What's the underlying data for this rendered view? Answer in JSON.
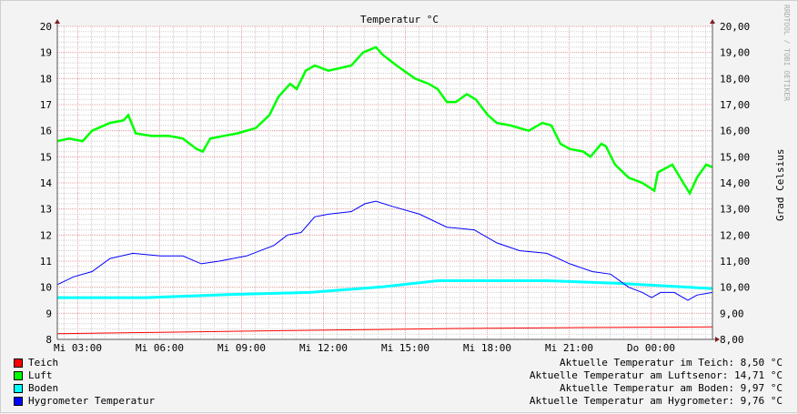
{
  "chart_data": {
    "type": "line",
    "title": "Temperatur °C",
    "ylabel": "Grad Celsius",
    "watermark": "RRDTOOL / TOBI OETIKER",
    "xunit": "hours (clock time, Mi 00:00 = 0)",
    "xlim": [
      2.25,
      26.25
    ],
    "ylim": [
      8,
      20
    ],
    "grid": true,
    "x_ticks": [
      {
        "x": 3,
        "label": "Mi 03:00"
      },
      {
        "x": 6,
        "label": "Mi 06:00"
      },
      {
        "x": 9,
        "label": "Mi 09:00"
      },
      {
        "x": 12,
        "label": "Mi 12:00"
      },
      {
        "x": 15,
        "label": "Mi 15:00"
      },
      {
        "x": 18,
        "label": "Mi 18:00"
      },
      {
        "x": 21,
        "label": "Mi 21:00"
      },
      {
        "x": 24,
        "label": "Do 00:00"
      }
    ],
    "y_ticks_left": [
      "8",
      "9",
      "10",
      "11",
      "12",
      "13",
      "14",
      "15",
      "16",
      "17",
      "18",
      "19",
      "20"
    ],
    "y_ticks_right": [
      "8,00",
      "9,00",
      "10,00",
      "11,00",
      "12,00",
      "13,00",
      "14,00",
      "15,00",
      "16,00",
      "17,00",
      "18,00",
      "19,00",
      "20,00"
    ],
    "series": [
      {
        "name": "Teich",
        "color": "#ff0000",
        "width": 1,
        "points": [
          [
            2.25,
            8.22
          ],
          [
            6,
            8.27
          ],
          [
            10.2,
            8.33
          ],
          [
            14,
            8.38
          ],
          [
            16.9,
            8.42
          ],
          [
            21,
            8.45
          ],
          [
            26.25,
            8.48
          ]
        ]
      },
      {
        "name": "Luft",
        "color": "#00ff00",
        "width": 2.5,
        "points": [
          [
            2.25,
            15.6
          ],
          [
            2.68,
            15.7
          ],
          [
            3.18,
            15.6
          ],
          [
            3.52,
            16.0
          ],
          [
            4.18,
            16.3
          ],
          [
            4.68,
            16.4
          ],
          [
            4.85,
            16.6
          ],
          [
            5.12,
            15.9
          ],
          [
            5.68,
            15.8
          ],
          [
            6.35,
            15.8
          ],
          [
            6.85,
            15.7
          ],
          [
            7.35,
            15.3
          ],
          [
            7.58,
            15.2
          ],
          [
            7.85,
            15.7
          ],
          [
            8.85,
            15.9
          ],
          [
            9.52,
            16.1
          ],
          [
            10.02,
            16.6
          ],
          [
            10.35,
            17.3
          ],
          [
            10.78,
            17.8
          ],
          [
            11.02,
            17.6
          ],
          [
            11.35,
            18.3
          ],
          [
            11.68,
            18.5
          ],
          [
            12.18,
            18.3
          ],
          [
            13.02,
            18.5
          ],
          [
            13.45,
            19.0
          ],
          [
            13.92,
            19.2
          ],
          [
            14.18,
            18.9
          ],
          [
            14.68,
            18.5
          ],
          [
            15.35,
            18.0
          ],
          [
            15.85,
            17.8
          ],
          [
            16.18,
            17.6
          ],
          [
            16.52,
            17.1
          ],
          [
            16.85,
            17.1
          ],
          [
            17.25,
            17.4
          ],
          [
            17.58,
            17.2
          ],
          [
            18.02,
            16.6
          ],
          [
            18.35,
            16.3
          ],
          [
            18.85,
            16.2
          ],
          [
            19.52,
            16.0
          ],
          [
            20.02,
            16.3
          ],
          [
            20.35,
            16.2
          ],
          [
            20.68,
            15.5
          ],
          [
            21.02,
            15.3
          ],
          [
            21.52,
            15.2
          ],
          [
            21.78,
            15.0
          ],
          [
            22.18,
            15.5
          ],
          [
            22.35,
            15.4
          ],
          [
            22.68,
            14.7
          ],
          [
            23.18,
            14.2
          ],
          [
            23.68,
            14.0
          ],
          [
            24.12,
            13.7
          ],
          [
            24.25,
            14.4
          ],
          [
            24.78,
            14.7
          ],
          [
            25.18,
            14.0
          ],
          [
            25.42,
            13.6
          ],
          [
            25.68,
            14.2
          ],
          [
            26.02,
            14.7
          ],
          [
            26.25,
            14.6
          ]
        ]
      },
      {
        "name": "Boden",
        "color": "#00ffff",
        "width": 3,
        "points": [
          [
            2.25,
            9.6
          ],
          [
            5.5,
            9.6
          ],
          [
            8.5,
            9.72
          ],
          [
            11.5,
            9.8
          ],
          [
            14.2,
            10.02
          ],
          [
            16.2,
            10.25
          ],
          [
            20.2,
            10.25
          ],
          [
            22.8,
            10.15
          ],
          [
            26.25,
            9.95
          ]
        ]
      },
      {
        "name": "Hygrometer Temperatur",
        "color": "#0000ff",
        "width": 1,
        "points": [
          [
            2.25,
            10.1
          ],
          [
            2.85,
            10.4
          ],
          [
            3.52,
            10.6
          ],
          [
            4.18,
            11.1
          ],
          [
            5.02,
            11.3
          ],
          [
            6.02,
            11.2
          ],
          [
            6.85,
            11.2
          ],
          [
            7.52,
            10.9
          ],
          [
            8.18,
            11.0
          ],
          [
            9.18,
            11.2
          ],
          [
            10.18,
            11.6
          ],
          [
            10.68,
            12.0
          ],
          [
            11.18,
            12.1
          ],
          [
            11.68,
            12.7
          ],
          [
            12.18,
            12.8
          ],
          [
            13.02,
            12.9
          ],
          [
            13.52,
            13.2
          ],
          [
            13.92,
            13.3
          ],
          [
            14.52,
            13.1
          ],
          [
            15.52,
            12.8
          ],
          [
            16.52,
            12.3
          ],
          [
            17.52,
            12.2
          ],
          [
            18.35,
            11.7
          ],
          [
            19.18,
            11.4
          ],
          [
            20.18,
            11.3
          ],
          [
            21.02,
            10.9
          ],
          [
            21.85,
            10.6
          ],
          [
            22.52,
            10.5
          ],
          [
            23.18,
            10.0
          ],
          [
            23.68,
            9.8
          ],
          [
            24.02,
            9.6
          ],
          [
            24.35,
            9.8
          ],
          [
            24.85,
            9.8
          ],
          [
            25.35,
            9.5
          ],
          [
            25.68,
            9.7
          ],
          [
            26.25,
            9.8
          ]
        ]
      }
    ],
    "legend_placement": "bottom-left",
    "current_values": [
      "Aktuelle Temperatur im Teich: 8,50 °C",
      "Aktuelle Temperatur am Luftsenor: 14,71 °C",
      "Aktuelle Temperatur am Boden: 9,97 °C",
      "Aktuelle Temperatur am Hygrometer: 9,76 °C"
    ]
  }
}
